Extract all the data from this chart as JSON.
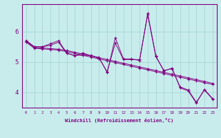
{
  "xlabel": "Windchill (Refroidissement éolien,°C)",
  "bg_color": "#c8ecec",
  "line_color": "#800080",
  "grid_color": "#a0d0d0",
  "x_ticks": [
    0,
    1,
    2,
    3,
    4,
    5,
    6,
    7,
    8,
    9,
    10,
    11,
    12,
    13,
    14,
    15,
    16,
    17,
    18,
    19,
    20,
    21,
    22,
    23
  ],
  "y_ticks": [
    4,
    5,
    6
  ],
  "ylim": [
    3.5,
    6.9
  ],
  "xlim": [
    -0.5,
    23.5
  ],
  "series": [
    [
      5.7,
      5.5,
      5.5,
      5.6,
      5.7,
      5.3,
      5.2,
      5.3,
      5.2,
      5.15,
      4.65,
      5.8,
      5.1,
      5.1,
      5.05,
      6.6,
      5.2,
      4.7,
      4.8,
      4.15,
      4.05,
      3.65,
      4.1,
      3.8
    ],
    [
      5.7,
      5.5,
      5.5,
      5.55,
      5.65,
      5.28,
      5.22,
      5.22,
      5.22,
      5.12,
      4.68,
      5.62,
      5.08,
      5.08,
      5.08,
      6.55,
      5.18,
      4.72,
      4.78,
      4.18,
      4.08,
      3.68,
      4.08,
      3.78
    ],
    [
      5.68,
      5.48,
      5.46,
      5.44,
      5.42,
      5.38,
      5.32,
      5.26,
      5.2,
      5.14,
      5.08,
      5.02,
      4.96,
      4.9,
      4.84,
      4.78,
      4.72,
      4.66,
      4.6,
      4.54,
      4.48,
      4.42,
      4.36,
      4.3
    ],
    [
      5.65,
      5.45,
      5.43,
      5.41,
      5.39,
      5.34,
      5.28,
      5.22,
      5.16,
      5.1,
      5.04,
      4.98,
      4.92,
      4.86,
      4.8,
      4.74,
      4.68,
      4.62,
      4.56,
      4.5,
      4.44,
      4.38,
      4.32,
      4.26
    ]
  ]
}
